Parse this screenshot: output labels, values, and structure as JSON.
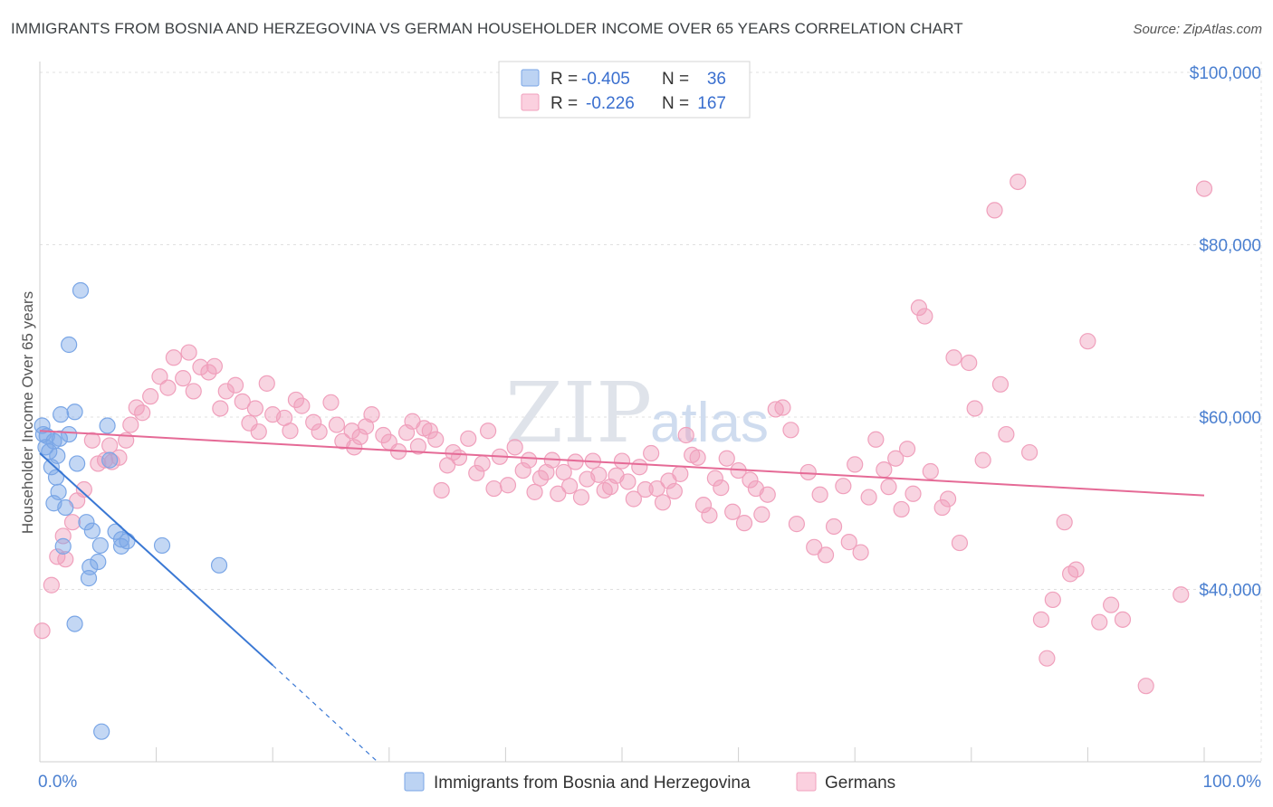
{
  "header": {
    "title": "IMMIGRANTS FROM BOSNIA AND HERZEGOVINA VS GERMAN HOUSEHOLDER INCOME OVER 65 YEARS CORRELATION CHART",
    "source": "Source: ZipAtlas.com"
  },
  "watermark": {
    "zip": "ZIP",
    "atlas": "atlas"
  },
  "legend": {
    "r_label": "R =",
    "n_label": "N =",
    "rows": [
      {
        "r": "-0.405",
        "n": "36"
      },
      {
        "r": "-0.226",
        "n": "167"
      }
    ]
  },
  "chart_data": {
    "type": "scatter",
    "title": "IMMIGRANTS FROM BOSNIA AND HERZEGOVINA VS GERMAN HOUSEHOLDER INCOME OVER 65 YEARS CORRELATION CHART",
    "xlabel": "",
    "ylabel": "Householder Income Over 65 years",
    "xlim": [
      0,
      100
    ],
    "ylim": [
      20000,
      100000
    ],
    "x_tick_labels": [
      "0.0%",
      "100.0%"
    ],
    "y_ticks": [
      40000,
      60000,
      80000,
      100000
    ],
    "y_tick_labels": [
      "$40,000",
      "$60,000",
      "$80,000",
      "$100,000"
    ],
    "grid": true,
    "legend_position": "top-center",
    "colors": {
      "bosnia": "#7aa6e6",
      "bosnia_line": "#3a78d4",
      "germans": "#f0a0bc",
      "germans_line": "#e56a96"
    },
    "series": [
      {
        "name": "Immigrants from Bosnia and Herzegovina",
        "trend": {
          "x": [
            0,
            20,
            29
          ],
          "y": [
            55800,
            31200,
            20000
          ]
        },
        "points": [
          [
            0.3,
            58000
          ],
          [
            0.5,
            56500
          ],
          [
            0.8,
            56000
          ],
          [
            1.2,
            57200
          ],
          [
            1.5,
            55500
          ],
          [
            1.8,
            60300
          ],
          [
            2.5,
            58000
          ],
          [
            3,
            60600
          ],
          [
            1.7,
            57500
          ],
          [
            1.2,
            50000
          ],
          [
            1.4,
            53000
          ],
          [
            2.2,
            49500
          ],
          [
            3.2,
            54600
          ],
          [
            3.5,
            74700
          ],
          [
            2.5,
            68400
          ],
          [
            4,
            47800
          ],
          [
            4.5,
            46800
          ],
          [
            5,
            43200
          ],
          [
            6,
            55000
          ],
          [
            5.8,
            59000
          ],
          [
            6.5,
            46700
          ],
          [
            7,
            45000
          ],
          [
            7.5,
            45600
          ],
          [
            10.5,
            45100
          ],
          [
            4.2,
            41300
          ],
          [
            4.3,
            42600
          ],
          [
            3,
            36000
          ],
          [
            5.2,
            45100
          ],
          [
            2,
            45000
          ],
          [
            1.6,
            51300
          ],
          [
            0.2,
            59000
          ],
          [
            15.4,
            42800
          ],
          [
            7,
            45800
          ],
          [
            5.3,
            23500
          ],
          [
            1,
            54200
          ],
          [
            0.6,
            57800
          ]
        ]
      },
      {
        "name": "Germans",
        "trend": {
          "x": [
            0,
            100
          ],
          "y": [
            58400,
            50900
          ]
        },
        "points": [
          [
            0.2,
            35200
          ],
          [
            1,
            40500
          ],
          [
            1.5,
            43800
          ],
          [
            2,
            46200
          ],
          [
            2.8,
            47800
          ],
          [
            3.2,
            50300
          ],
          [
            3.8,
            51600
          ],
          [
            4.5,
            57300
          ],
          [
            5,
            54600
          ],
          [
            5.6,
            55000
          ],
          [
            6,
            56700
          ],
          [
            6.8,
            55300
          ],
          [
            7.4,
            57300
          ],
          [
            7.8,
            59100
          ],
          [
            8.3,
            61100
          ],
          [
            8.8,
            60500
          ],
          [
            9.5,
            62400
          ],
          [
            10.3,
            64700
          ],
          [
            11,
            63400
          ],
          [
            11.5,
            66900
          ],
          [
            12.3,
            64500
          ],
          [
            12.8,
            67500
          ],
          [
            13.2,
            63000
          ],
          [
            13.8,
            65800
          ],
          [
            14.5,
            65200
          ],
          [
            15,
            65900
          ],
          [
            15.5,
            61000
          ],
          [
            16,
            63000
          ],
          [
            16.8,
            63700
          ],
          [
            17.4,
            61800
          ],
          [
            18,
            59300
          ],
          [
            18.8,
            58300
          ],
          [
            19.5,
            63900
          ],
          [
            20,
            60300
          ],
          [
            21,
            59900
          ],
          [
            21.5,
            58400
          ],
          [
            22,
            62000
          ],
          [
            22.5,
            61300
          ],
          [
            23.5,
            59400
          ],
          [
            24,
            58300
          ],
          [
            25,
            61700
          ],
          [
            25.5,
            59100
          ],
          [
            26,
            57200
          ],
          [
            26.8,
            58400
          ],
          [
            27.5,
            57700
          ],
          [
            28,
            58900
          ],
          [
            28.5,
            60300
          ],
          [
            29.5,
            57900
          ],
          [
            30,
            57100
          ],
          [
            30.8,
            56000
          ],
          [
            31.5,
            58200
          ],
          [
            32,
            59500
          ],
          [
            32.5,
            56600
          ],
          [
            33,
            58700
          ],
          [
            33.5,
            58400
          ],
          [
            34,
            57400
          ],
          [
            34.5,
            51500
          ],
          [
            35,
            54400
          ],
          [
            35.5,
            55900
          ],
          [
            36,
            55300
          ],
          [
            36.8,
            57500
          ],
          [
            37.5,
            53500
          ],
          [
            38,
            54600
          ],
          [
            38.5,
            58400
          ],
          [
            39,
            51700
          ],
          [
            39.5,
            55400
          ],
          [
            40.2,
            52100
          ],
          [
            40.8,
            56500
          ],
          [
            41.5,
            53800
          ],
          [
            42,
            55000
          ],
          [
            42.5,
            51300
          ],
          [
            43,
            52900
          ],
          [
            43.5,
            53600
          ],
          [
            44,
            55000
          ],
          [
            44.5,
            51100
          ],
          [
            45,
            53600
          ],
          [
            45.5,
            52000
          ],
          [
            46,
            54800
          ],
          [
            46.5,
            50700
          ],
          [
            47,
            52800
          ],
          [
            47.5,
            54900
          ],
          [
            48,
            53300
          ],
          [
            48.5,
            51500
          ],
          [
            49,
            51900
          ],
          [
            49.5,
            53200
          ],
          [
            50,
            54900
          ],
          [
            50.5,
            52500
          ],
          [
            51,
            50500
          ],
          [
            51.5,
            54200
          ],
          [
            52,
            51600
          ],
          [
            52.5,
            55800
          ],
          [
            53,
            51700
          ],
          [
            53.5,
            50100
          ],
          [
            54,
            52600
          ],
          [
            54.5,
            51400
          ],
          [
            55,
            53400
          ],
          [
            55.5,
            57900
          ],
          [
            56,
            55600
          ],
          [
            56.5,
            55300
          ],
          [
            57,
            49800
          ],
          [
            57.5,
            48600
          ],
          [
            58,
            52900
          ],
          [
            58.5,
            51800
          ],
          [
            59,
            55200
          ],
          [
            59.5,
            49000
          ],
          [
            60,
            53800
          ],
          [
            60.5,
            47700
          ],
          [
            61,
            52700
          ],
          [
            61.5,
            51700
          ],
          [
            62,
            48700
          ],
          [
            62.5,
            51000
          ],
          [
            63.2,
            60900
          ],
          [
            63.8,
            61100
          ],
          [
            64.5,
            58500
          ],
          [
            65,
            47600
          ],
          [
            66,
            53600
          ],
          [
            66.5,
            44900
          ],
          [
            67,
            51000
          ],
          [
            67.5,
            44000
          ],
          [
            68.2,
            47300
          ],
          [
            69,
            52000
          ],
          [
            69.5,
            45500
          ],
          [
            70,
            54500
          ],
          [
            70.5,
            44300
          ],
          [
            71.2,
            50700
          ],
          [
            71.8,
            57400
          ],
          [
            72.5,
            53900
          ],
          [
            72.9,
            51900
          ],
          [
            73.5,
            55200
          ],
          [
            74,
            49300
          ],
          [
            74.5,
            56300
          ],
          [
            75,
            51100
          ],
          [
            75.5,
            72700
          ],
          [
            76,
            71700
          ],
          [
            76.5,
            53700
          ],
          [
            77.5,
            49500
          ],
          [
            78,
            50500
          ],
          [
            78.5,
            66900
          ],
          [
            79,
            45400
          ],
          [
            79.8,
            66300
          ],
          [
            80.3,
            61000
          ],
          [
            81,
            55000
          ],
          [
            82,
            84000
          ],
          [
            82.5,
            63800
          ],
          [
            83,
            58000
          ],
          [
            84,
            87300
          ],
          [
            85,
            55900
          ],
          [
            86,
            36500
          ],
          [
            86.5,
            32000
          ],
          [
            87,
            38800
          ],
          [
            88,
            47800
          ],
          [
            88.5,
            41800
          ],
          [
            89,
            42300
          ],
          [
            90,
            68800
          ],
          [
            91,
            36200
          ],
          [
            92,
            38200
          ],
          [
            93,
            36500
          ],
          [
            95,
            28800
          ],
          [
            98,
            39400
          ],
          [
            100,
            86500
          ],
          [
            2.2,
            43500
          ],
          [
            6.2,
            54800
          ],
          [
            18.5,
            61000
          ],
          [
            27,
            56500
          ]
        ]
      }
    ]
  },
  "bottom_legend": {
    "items": [
      "Immigrants from Bosnia and Herzegovina",
      "Germans"
    ]
  }
}
